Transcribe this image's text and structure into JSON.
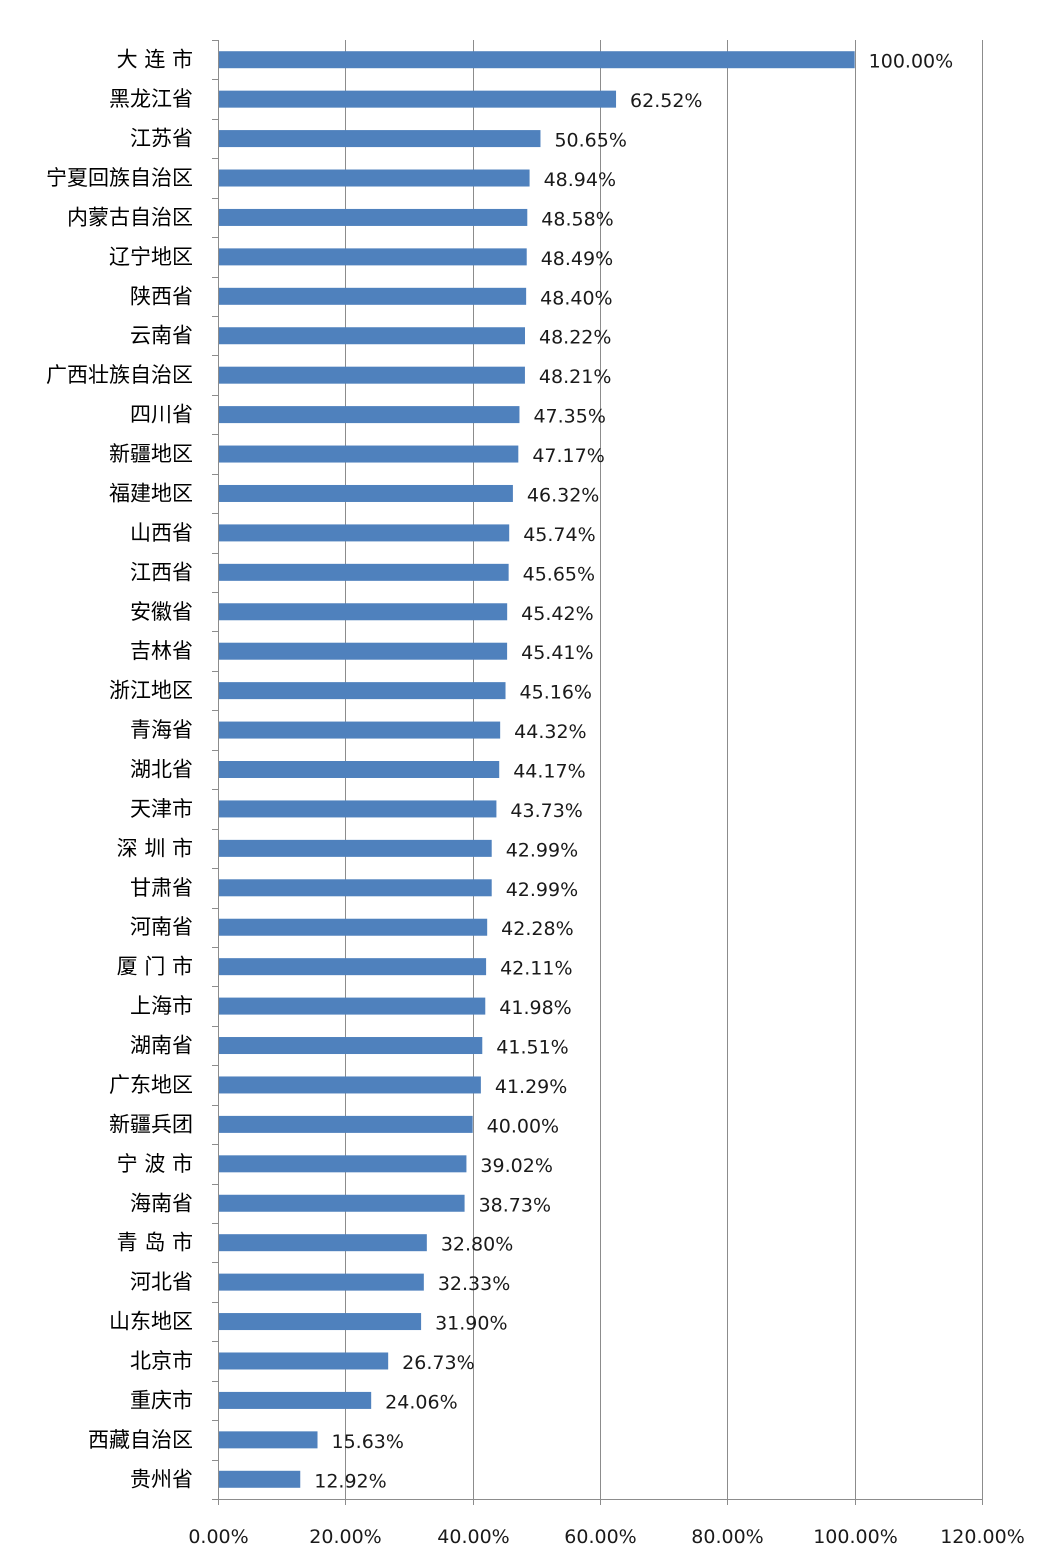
{
  "chart_data": {
    "type": "bar",
    "orientation": "horizontal",
    "categories": [
      "大 连 市",
      "黑龙江省",
      "江苏省",
      "宁夏回族自治区",
      "内蒙古自治区",
      "辽宁地区",
      "陕西省",
      "云南省",
      "广西壮族自治区",
      "四川省",
      "新疆地区",
      "福建地区",
      "山西省",
      "江西省",
      "安徽省",
      "吉林省",
      "浙江地区",
      "青海省",
      "湖北省",
      "天津市",
      "深 圳 市",
      "甘肃省",
      "河南省",
      "厦 门 市",
      "上海市",
      "湖南省",
      "广东地区",
      "新疆兵团",
      "宁 波 市",
      "海南省",
      "青 岛 市",
      "河北省",
      "山东地区",
      "北京市",
      "重庆市",
      "西藏自治区",
      "贵州省"
    ],
    "values": [
      100.0,
      62.52,
      50.65,
      48.94,
      48.58,
      48.49,
      48.4,
      48.22,
      48.21,
      47.35,
      47.17,
      46.32,
      45.74,
      45.65,
      45.42,
      45.41,
      45.16,
      44.32,
      44.17,
      43.73,
      42.99,
      42.99,
      42.28,
      42.11,
      41.98,
      41.51,
      41.29,
      40.0,
      39.02,
      38.73,
      32.8,
      32.33,
      31.9,
      26.73,
      24.06,
      15.63,
      12.92
    ],
    "value_labels": [
      "100.00%",
      "62.52%",
      "50.65%",
      "48.94%",
      "48.58%",
      "48.49%",
      "48.40%",
      "48.22%",
      "48.21%",
      "47.35%",
      "47.17%",
      "46.32%",
      "45.74%",
      "45.65%",
      "45.42%",
      "45.41%",
      "45.16%",
      "44.32%",
      "44.17%",
      "43.73%",
      "42.99%",
      "42.99%",
      "42.28%",
      "42.11%",
      "41.98%",
      "41.51%",
      "41.29%",
      "40.00%",
      "39.02%",
      "38.73%",
      "32.80%",
      "32.33%",
      "31.90%",
      "26.73%",
      "24.06%",
      "15.63%",
      "12.92%"
    ],
    "xlim": [
      0,
      120
    ],
    "xticks": [
      0,
      20,
      40,
      60,
      80,
      100,
      120
    ],
    "xtick_labels": [
      "0.00%",
      "20.00%",
      "40.00%",
      "60.00%",
      "80.00%",
      "100.00%",
      "120.00%"
    ],
    "grid": "vertical",
    "legend": "none",
    "title": "",
    "xlabel": "",
    "ylabel": "",
    "colors": {
      "bar": "#4F81BD",
      "grid": "#8C8C8C",
      "axis": "#8C8C8C"
    }
  }
}
